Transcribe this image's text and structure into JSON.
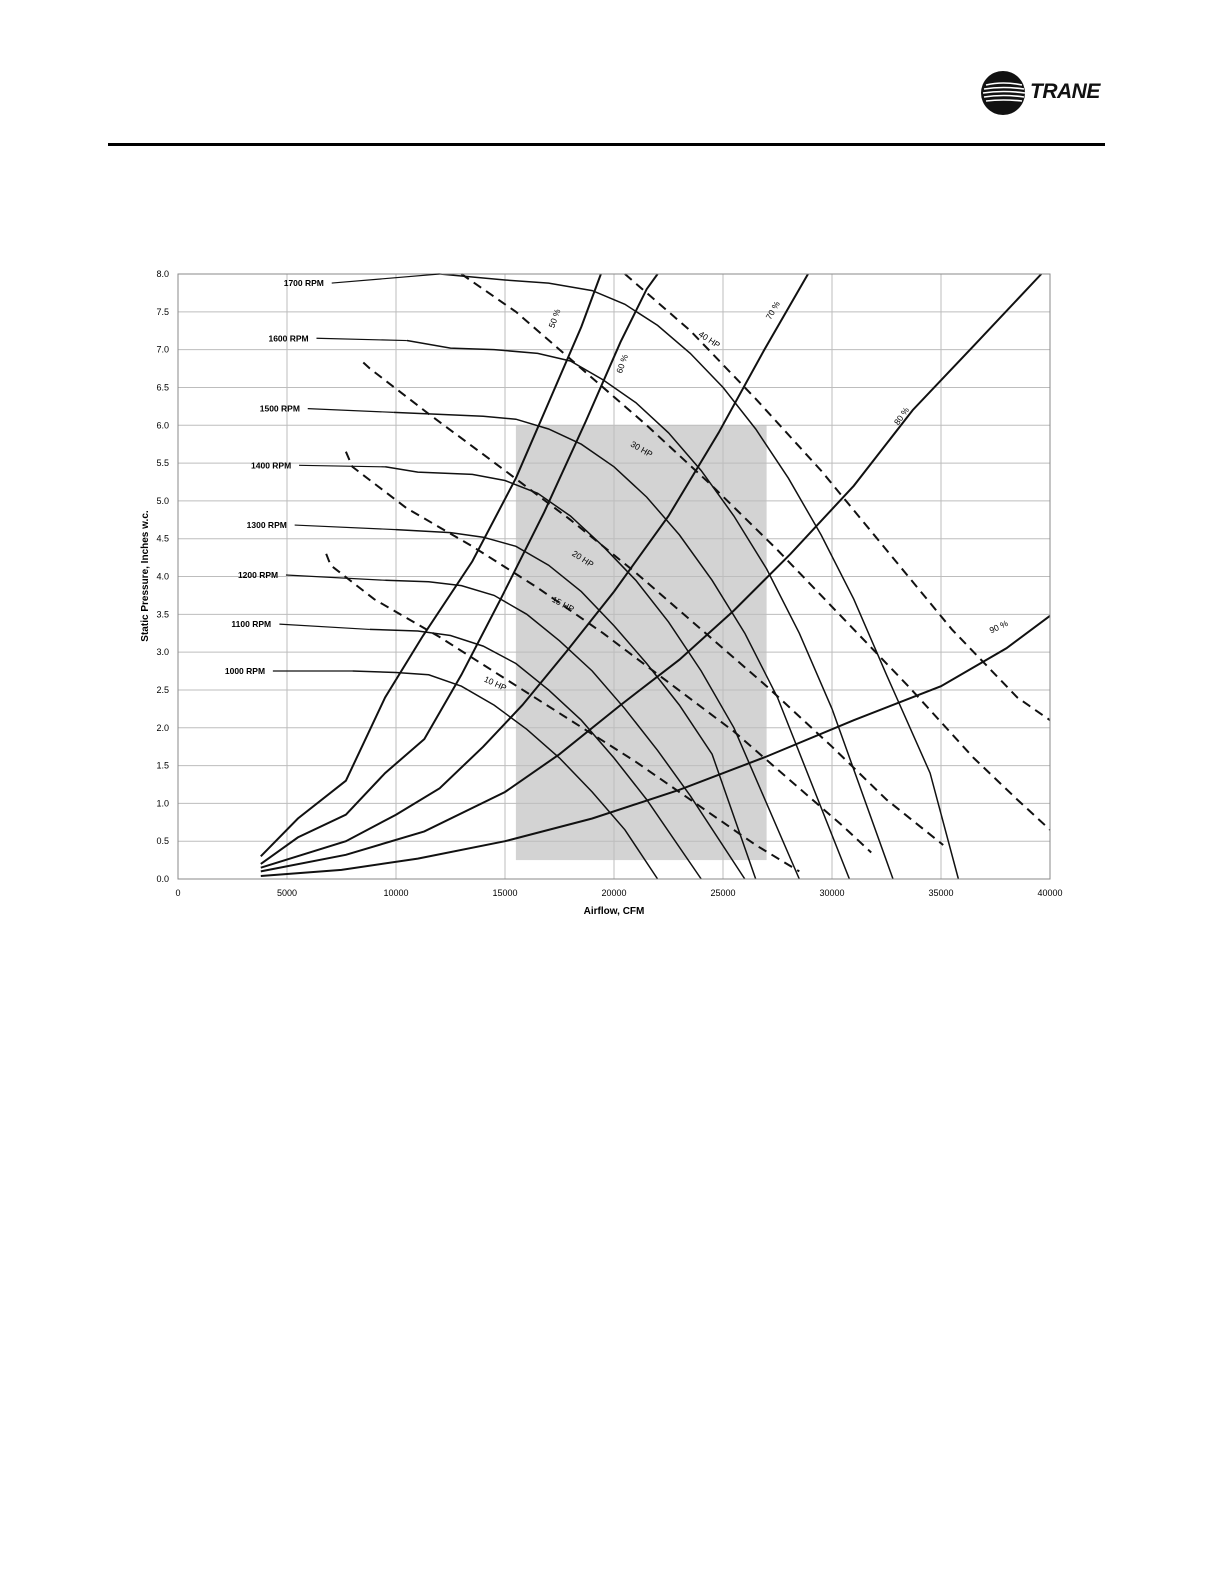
{
  "header": {
    "logo_text": "TRANE"
  },
  "chart_data": {
    "type": "line",
    "title": "",
    "xlabel": "Airflow, CFM",
    "ylabel": "Static Pressure, Inches w.c.",
    "xlim": [
      0,
      40000
    ],
    "ylim": [
      0,
      8
    ],
    "xticks": [
      0,
      5000,
      10000,
      15000,
      20000,
      25000,
      30000,
      35000,
      40000
    ],
    "yticks": [
      "0.0",
      "0.5",
      "1.0",
      "1.5",
      "2.0",
      "2.5",
      "3.0",
      "3.5",
      "4.0",
      "4.5",
      "5.0",
      "5.5",
      "6.0",
      "6.5",
      "7.0",
      "7.5",
      "8.0"
    ],
    "grid": true,
    "shaded_region": {
      "x": [
        15500,
        27000
      ],
      "y": [
        0.25,
        6.0
      ],
      "color": "#d3d3d3"
    },
    "rpm_curves": [
      {
        "name": "1000 RPM",
        "points": [
          [
            8000,
            2.75
          ],
          [
            10000,
            2.73
          ],
          [
            11500,
            2.7
          ],
          [
            13000,
            2.55
          ],
          [
            14500,
            2.3
          ],
          [
            16000,
            1.98
          ],
          [
            17500,
            1.6
          ],
          [
            19000,
            1.15
          ],
          [
            20500,
            0.65
          ],
          [
            22000,
            0.0
          ]
        ]
      },
      {
        "name": "1100 RPM",
        "points": [
          [
            8800,
            3.3
          ],
          [
            11000,
            3.28
          ],
          [
            12500,
            3.22
          ],
          [
            14000,
            3.08
          ],
          [
            15500,
            2.85
          ],
          [
            17000,
            2.5
          ],
          [
            18500,
            2.1
          ],
          [
            20000,
            1.6
          ],
          [
            21500,
            1.05
          ],
          [
            24000,
            0.0
          ]
        ]
      },
      {
        "name": "1200 RPM",
        "points": [
          [
            9500,
            3.95
          ],
          [
            11500,
            3.93
          ],
          [
            13000,
            3.88
          ],
          [
            14500,
            3.75
          ],
          [
            16000,
            3.5
          ],
          [
            17500,
            3.15
          ],
          [
            19000,
            2.75
          ],
          [
            20500,
            2.25
          ],
          [
            22000,
            1.7
          ],
          [
            23500,
            1.1
          ],
          [
            26000,
            0.0
          ]
        ]
      },
      {
        "name": "1300 RPM",
        "points": [
          [
            10000,
            4.62
          ],
          [
            12500,
            4.58
          ],
          [
            14000,
            4.52
          ],
          [
            15500,
            4.4
          ],
          [
            17000,
            4.15
          ],
          [
            18500,
            3.8
          ],
          [
            20000,
            3.35
          ],
          [
            21500,
            2.85
          ],
          [
            23000,
            2.3
          ],
          [
            24500,
            1.65
          ],
          [
            26500,
            0.0
          ]
        ]
      },
      {
        "name": "1400 RPM",
        "points": [
          [
            9500,
            5.45
          ],
          [
            11000,
            5.38
          ],
          [
            13500,
            5.35
          ],
          [
            15000,
            5.27
          ],
          [
            16500,
            5.1
          ],
          [
            18000,
            4.8
          ],
          [
            19500,
            4.4
          ],
          [
            21000,
            3.95
          ],
          [
            22500,
            3.4
          ],
          [
            24000,
            2.75
          ],
          [
            25500,
            2.0
          ],
          [
            28500,
            0.0
          ]
        ]
      },
      {
        "name": "1500 RPM",
        "points": [
          [
            9900,
            6.17
          ],
          [
            11500,
            6.15
          ],
          [
            14000,
            6.12
          ],
          [
            15500,
            6.08
          ],
          [
            17000,
            5.95
          ],
          [
            18500,
            5.75
          ],
          [
            20000,
            5.45
          ],
          [
            21500,
            5.05
          ],
          [
            23000,
            4.55
          ],
          [
            24500,
            3.95
          ],
          [
            26000,
            3.25
          ],
          [
            27500,
            2.4
          ],
          [
            30800,
            0.0
          ]
        ]
      },
      {
        "name": "1600 RPM",
        "points": [
          [
            10500,
            7.12
          ],
          [
            12500,
            7.02
          ],
          [
            14500,
            7.0
          ],
          [
            16500,
            6.95
          ],
          [
            18000,
            6.85
          ],
          [
            19500,
            6.6
          ],
          [
            21000,
            6.3
          ],
          [
            22500,
            5.9
          ],
          [
            24000,
            5.4
          ],
          [
            25500,
            4.8
          ],
          [
            27000,
            4.1
          ],
          [
            28500,
            3.25
          ],
          [
            30000,
            2.25
          ],
          [
            32800,
            0.0
          ]
        ]
      },
      {
        "name": "1700 RPM",
        "points": [
          [
            12000,
            8.0
          ],
          [
            15000,
            7.92
          ],
          [
            17000,
            7.88
          ],
          [
            19000,
            7.78
          ],
          [
            20500,
            7.6
          ],
          [
            22000,
            7.32
          ],
          [
            23500,
            6.95
          ],
          [
            25000,
            6.5
          ],
          [
            26500,
            5.95
          ],
          [
            28000,
            5.3
          ],
          [
            29500,
            4.55
          ],
          [
            31000,
            3.7
          ],
          [
            32500,
            2.7
          ],
          [
            34500,
            1.4
          ],
          [
            35800,
            0.0
          ]
        ]
      }
    ],
    "efficiency_curves": [
      {
        "name": "50 %",
        "points": [
          [
            3800,
            0.3
          ],
          [
            5500,
            0.8
          ],
          [
            7700,
            1.3
          ],
          [
            9500,
            2.4
          ],
          [
            11200,
            3.2
          ],
          [
            13500,
            4.2
          ],
          [
            15500,
            5.3
          ],
          [
            17000,
            6.3
          ],
          [
            18500,
            7.3
          ],
          [
            19400,
            8.0
          ]
        ]
      },
      {
        "name": "60 %",
        "points": [
          [
            3800,
            0.2
          ],
          [
            5500,
            0.55
          ],
          [
            7700,
            0.85
          ],
          [
            9500,
            1.4
          ],
          [
            11300,
            1.85
          ],
          [
            13000,
            2.7
          ],
          [
            14800,
            3.7
          ],
          [
            16800,
            4.85
          ],
          [
            18700,
            6.05
          ],
          [
            20300,
            7.1
          ],
          [
            21500,
            7.8
          ],
          [
            22000,
            8.0
          ]
        ]
      },
      {
        "name": "70 %",
        "points": [
          [
            3800,
            0.15
          ],
          [
            7700,
            0.5
          ],
          [
            10000,
            0.85
          ],
          [
            12000,
            1.2
          ],
          [
            14000,
            1.75
          ],
          [
            15800,
            2.3
          ],
          [
            17800,
            3.0
          ],
          [
            20000,
            3.8
          ],
          [
            22500,
            4.8
          ],
          [
            24800,
            5.9
          ],
          [
            26900,
            7.0
          ],
          [
            28900,
            8.0
          ]
        ]
      },
      {
        "name": "80 %",
        "points": [
          [
            3800,
            0.1
          ],
          [
            7700,
            0.32
          ],
          [
            11300,
            0.63
          ],
          [
            15000,
            1.15
          ],
          [
            17500,
            1.65
          ],
          [
            20300,
            2.3
          ],
          [
            23000,
            2.9
          ],
          [
            25500,
            3.55
          ],
          [
            28100,
            4.3
          ],
          [
            31000,
            5.2
          ],
          [
            33700,
            6.2
          ],
          [
            36500,
            7.05
          ],
          [
            39600,
            8.0
          ]
        ]
      },
      {
        "name": "90 %",
        "points": [
          [
            3800,
            0.04
          ],
          [
            7500,
            0.12
          ],
          [
            11000,
            0.27
          ],
          [
            15000,
            0.5
          ],
          [
            19000,
            0.8
          ],
          [
            23000,
            1.18
          ],
          [
            27000,
            1.62
          ],
          [
            31000,
            2.1
          ],
          [
            35000,
            2.55
          ],
          [
            38000,
            3.05
          ],
          [
            40000,
            3.48
          ]
        ]
      }
    ],
    "hp_curves": [
      {
        "name": "10 HP",
        "points": [
          [
            6800,
            4.3
          ],
          [
            7000,
            4.15
          ],
          [
            9000,
            3.7
          ],
          [
            12000,
            3.2
          ],
          [
            15000,
            2.65
          ],
          [
            18000,
            2.1
          ],
          [
            21000,
            1.55
          ],
          [
            24000,
            0.95
          ],
          [
            26500,
            0.45
          ],
          [
            28500,
            0.1
          ]
        ]
      },
      {
        "name": "15 HP",
        "points": [
          [
            7700,
            5.65
          ],
          [
            8000,
            5.45
          ],
          [
            10500,
            4.9
          ],
          [
            13500,
            4.4
          ],
          [
            16500,
            3.85
          ],
          [
            19500,
            3.25
          ],
          [
            22500,
            2.6
          ],
          [
            25500,
            1.95
          ],
          [
            28500,
            1.2
          ],
          [
            30500,
            0.7
          ],
          [
            31800,
            0.35
          ]
        ]
      },
      {
        "name": "20 HP",
        "points": [
          [
            8500,
            6.83
          ],
          [
            8800,
            6.75
          ],
          [
            11500,
            6.15
          ],
          [
            15000,
            5.4
          ],
          [
            18000,
            4.75
          ],
          [
            21000,
            4.05
          ],
          [
            24000,
            3.3
          ],
          [
            27000,
            2.55
          ],
          [
            30000,
            1.75
          ],
          [
            32500,
            1.05
          ],
          [
            35100,
            0.45
          ]
        ]
      },
      {
        "name": "30 HP",
        "points": [
          [
            13000,
            8.0
          ],
          [
            15500,
            7.5
          ],
          [
            18500,
            6.75
          ],
          [
            21500,
            6.0
          ],
          [
            24500,
            5.2
          ],
          [
            27500,
            4.35
          ],
          [
            30500,
            3.45
          ],
          [
            33500,
            2.55
          ],
          [
            36500,
            1.6
          ],
          [
            38500,
            1.05
          ],
          [
            40000,
            0.65
          ]
        ]
      },
      {
        "name": "40 HP",
        "points": [
          [
            20500,
            8.0
          ],
          [
            23500,
            7.25
          ],
          [
            26500,
            6.35
          ],
          [
            29500,
            5.4
          ],
          [
            32500,
            4.35
          ],
          [
            35500,
            3.3
          ],
          [
            38500,
            2.4
          ],
          [
            40000,
            2.1
          ]
        ]
      }
    ],
    "labels": {
      "rpm": [
        "1000 RPM",
        "1100 RPM",
        "1200 RPM",
        "1300 RPM",
        "1400 RPM",
        "1500 RPM",
        "1600 RPM",
        "1700 RPM"
      ],
      "efficiency": [
        "50 %",
        "60 %",
        "70 %",
        "80 %",
        "90 %"
      ],
      "hp": [
        "10 HP",
        "15 HP",
        "20 HP",
        "30 HP",
        "40 HP"
      ]
    }
  }
}
